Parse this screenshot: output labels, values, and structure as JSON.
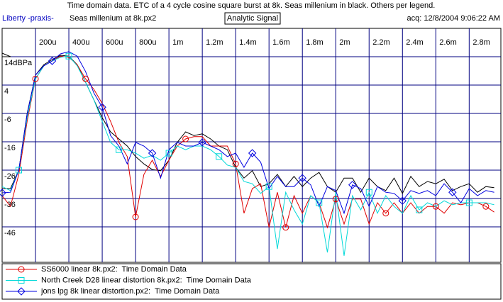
{
  "chart_data": {
    "type": "line",
    "title": "Time domain data. ETC of a 4 cycle cosine square burst at 8k. Seas millenium in black. Others per legend.",
    "program": "Liberty -praxis-",
    "file": "Seas millenium at 8k.px2",
    "mode": "Analytic Signal",
    "acquired": "acq: 12/8/2004 9:06:22 AM",
    "x": [
      0,
      50,
      100,
      150,
      200,
      250,
      300,
      350,
      400,
      450,
      500,
      550,
      600,
      650,
      700,
      750,
      800,
      850,
      900,
      950,
      1000,
      1050,
      1100,
      1150,
      1200,
      1250,
      1300,
      1350,
      1400,
      1450,
      1500,
      1550,
      1600,
      1650,
      1700,
      1750,
      1800,
      1850,
      1900,
      1950,
      2000,
      2050,
      2100,
      2150,
      2200,
      2250,
      2300,
      2350,
      2400,
      2450,
      2500,
      2550,
      2600,
      2650,
      2700,
      2750,
      2800,
      2850,
      2900,
      2950
    ],
    "xlim": [
      0,
      2990
    ],
    "xticks": [
      {
        "value": 200,
        "label": "200u"
      },
      {
        "value": 400,
        "label": "400u"
      },
      {
        "value": 600,
        "label": "600u"
      },
      {
        "value": 800,
        "label": "800u"
      },
      {
        "value": 1000,
        "label": "1m"
      },
      {
        "value": 1200,
        "label": "1.2m"
      },
      {
        "value": 1400,
        "label": "1.4m"
      },
      {
        "value": 1600,
        "label": "1.6m"
      },
      {
        "value": 1800,
        "label": "1.8m"
      },
      {
        "value": 2000,
        "label": "2m"
      },
      {
        "value": 2200,
        "label": "2.2m"
      },
      {
        "value": 2400,
        "label": "2.4m"
      },
      {
        "value": 2600,
        "label": "2.6m"
      },
      {
        "value": 2800,
        "label": "2.8m"
      }
    ],
    "ylim": [
      -58.5,
      24
    ],
    "yticks": [
      {
        "value": 14,
        "label": "14dBPa"
      },
      4,
      -6,
      -16,
      -26,
      -36,
      -46
    ],
    "grid": true,
    "series": [
      {
        "color": "#000000",
        "values": [
          -32.5,
          -32.5,
          -26,
          -6,
          7.5,
          11.2,
          13,
          14.5,
          14.2,
          11.2,
          5,
          -1.2,
          -7.5,
          -12.5,
          -15,
          -17.5,
          -21.2,
          -23.8,
          -25.8,
          -26.2,
          -22.5,
          -16.2,
          -12.5,
          -13.8,
          -13.2,
          -15,
          -17.5,
          -18.8,
          -25,
          -28.8,
          -26.2,
          -31.8,
          -30.8,
          -27.5,
          -31.8,
          -28.2,
          -31.8,
          -28.8,
          -26.8,
          -31.8,
          -33.8,
          -28.8,
          -28.8,
          -33.8,
          -28.8,
          -31.8,
          -33.2,
          -28.8,
          -34.2,
          -28.2,
          -31.8,
          -30,
          -30.8,
          -29.2,
          -33.2,
          -31.8,
          -30.8,
          -33.8,
          -31.8,
          -32.2
        ]
      },
      {
        "name": "SS6000 linear 8k.px2:  Time Domain Data",
        "color": "#e00000",
        "marker": "circle",
        "values": [
          -35,
          -38.8,
          -27.5,
          -8.8,
          6.2,
          10.8,
          12.5,
          14.2,
          13.8,
          11.2,
          6.2,
          2.5,
          -2.5,
          -8.8,
          -16.2,
          -21.2,
          -42.5,
          -27.5,
          -22.5,
          -28.2,
          -22.5,
          -17.5,
          -15,
          -14.2,
          -14.2,
          -17.5,
          -17.5,
          -17.5,
          -23.8,
          -41.2,
          -32.5,
          -30.8,
          -46.2,
          -33.8,
          -46.2,
          -35,
          -41.2,
          -35,
          -37.5,
          -46.2,
          -36.2,
          -45,
          -36.2,
          -36.2,
          -45,
          -37.5,
          -41.2,
          -37.5,
          -41.2,
          -37.5,
          -41.2,
          -38.8,
          -38.8,
          -41.2,
          -37.5,
          -38.2,
          -37.5,
          -37.5,
          -38.8,
          -40.8
        ]
      },
      {
        "name": "North Creek D28 linear distortion 8k.px2:  Time Domain Data",
        "color": "#00d8d8",
        "marker": "square",
        "values": [
          -31.8,
          -33.2,
          -26,
          -7.5,
          6.2,
          10.8,
          12.5,
          13.8,
          14.2,
          10.8,
          5,
          -1.2,
          -8.8,
          -16.2,
          -18.8,
          -18.8,
          -20,
          -21.8,
          -20.8,
          -22.5,
          -20,
          -17.5,
          -18.8,
          -17.5,
          -17.5,
          -18.8,
          -21.2,
          -24.2,
          -25,
          -30,
          -30.8,
          -34.2,
          -31.8,
          -53.8,
          -33.8,
          -40,
          -45,
          -35,
          -37.5,
          -55,
          -33.8,
          -56.2,
          -35,
          -40,
          -33.8,
          -41.2,
          -35,
          -38.8,
          -41.2,
          -35,
          -40,
          -37.5,
          -38.8,
          -36.8,
          -38.2,
          -37.5,
          -37.5,
          -37.5,
          -37.5,
          -38.2
        ]
      },
      {
        "name": "jons lpg 8k linear distortion.px2:  Time Domain Data",
        "color": "#0000e0",
        "marker": "diamond",
        "values": [
          -34,
          -33.8,
          -26,
          -6.2,
          7.5,
          10.8,
          12.5,
          15,
          15.8,
          14.2,
          8.8,
          1.2,
          -3.8,
          -13.8,
          -17.5,
          -23.8,
          -16.2,
          -17.5,
          -20,
          -28.8,
          -18.8,
          -16.2,
          -17.5,
          -17.5,
          -16.2,
          -17.5,
          -18.8,
          -21.2,
          -20,
          -25,
          -20,
          -23.2,
          -32.5,
          -28.2,
          -31.8,
          -31.8,
          -28.8,
          -31.2,
          -38.8,
          -31.8,
          -33.2,
          -41.2,
          -31.2,
          -32.5,
          -38.8,
          -31.8,
          -33.8,
          -34.2,
          -36.8,
          -33.2,
          -34.2,
          -33.2,
          -35,
          -30.8,
          -33.8,
          -37.5,
          -32.5,
          -35,
          -33.2,
          -33.8
        ]
      }
    ]
  }
}
